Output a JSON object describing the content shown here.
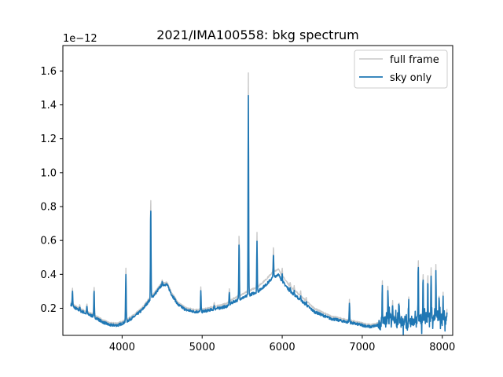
{
  "chart_data": {
    "type": "line",
    "title": "2021/IMA100558: bkg spectrum",
    "xlabel": "",
    "ylabel": "",
    "offset_label": "1e−12",
    "xlim": [
      3260,
      8130
    ],
    "ylim": [
      0.04,
      1.75
    ],
    "x_ticks": [
      4000,
      5000,
      6000,
      7000,
      8000
    ],
    "x_tick_labels": [
      "4000",
      "5000",
      "6000",
      "7000",
      "8000"
    ],
    "y_ticks": [
      0.2,
      0.4,
      0.6,
      0.8,
      1.0,
      1.2,
      1.4,
      1.6
    ],
    "y_tick_labels": [
      "0.2",
      "0.4",
      "0.6",
      "0.8",
      "1.0",
      "1.2",
      "1.4",
      "1.6"
    ],
    "grid": false,
    "legend_position": "top-right",
    "legend": [
      "full frame",
      "sky only"
    ],
    "colors": {
      "full_frame": "#c8c8c8",
      "sky_only": "#1f77b4"
    },
    "continuum_points": [
      [
        3360,
        0.22
      ],
      [
        3450,
        0.19
      ],
      [
        3550,
        0.17
      ],
      [
        3650,
        0.15
      ],
      [
        3750,
        0.12
      ],
      [
        3850,
        0.1
      ],
      [
        3950,
        0.1
      ],
      [
        4050,
        0.12
      ],
      [
        4150,
        0.15
      ],
      [
        4250,
        0.19
      ],
      [
        4330,
        0.24
      ],
      [
        4420,
        0.29
      ],
      [
        4500,
        0.34
      ],
      [
        4560,
        0.34
      ],
      [
        4620,
        0.28
      ],
      [
        4700,
        0.22
      ],
      [
        4800,
        0.19
      ],
      [
        4900,
        0.18
      ],
      [
        5000,
        0.18
      ],
      [
        5100,
        0.19
      ],
      [
        5200,
        0.2
      ],
      [
        5300,
        0.21
      ],
      [
        5400,
        0.24
      ],
      [
        5500,
        0.26
      ],
      [
        5600,
        0.28
      ],
      [
        5700,
        0.3
      ],
      [
        5800,
        0.34
      ],
      [
        5880,
        0.38
      ],
      [
        5950,
        0.4
      ],
      [
        6000,
        0.36
      ],
      [
        6100,
        0.3
      ],
      [
        6200,
        0.26
      ],
      [
        6300,
        0.22
      ],
      [
        6400,
        0.18
      ],
      [
        6500,
        0.16
      ],
      [
        6600,
        0.14
      ],
      [
        6700,
        0.13
      ],
      [
        6800,
        0.12
      ],
      [
        6900,
        0.11
      ],
      [
        7000,
        0.1
      ],
      [
        7100,
        0.09
      ],
      [
        7200,
        0.1
      ],
      [
        7300,
        0.13
      ],
      [
        7400,
        0.14
      ],
      [
        7500,
        0.12
      ],
      [
        7600,
        0.11
      ],
      [
        7700,
        0.13
      ],
      [
        7800,
        0.15
      ],
      [
        7900,
        0.14
      ],
      [
        8000,
        0.14
      ],
      [
        8060,
        0.13
      ]
    ],
    "sky_lines": [
      [
        3380,
        0.3
      ],
      [
        3470,
        0.21
      ],
      [
        3560,
        0.21
      ],
      [
        3650,
        0.3
      ],
      [
        4047,
        0.4
      ],
      [
        4358,
        0.8
      ],
      [
        4500,
        0.35
      ],
      [
        4670,
        0.22
      ],
      [
        4983,
        0.3
      ],
      [
        5150,
        0.22
      ],
      [
        5340,
        0.29
      ],
      [
        5461,
        0.59
      ],
      [
        5577,
        1.46
      ],
      [
        5685,
        0.59
      ],
      [
        5890,
        0.52
      ],
      [
        6000,
        0.4
      ],
      [
        6100,
        0.32
      ],
      [
        6150,
        0.3
      ],
      [
        6230,
        0.28
      ],
      [
        6300,
        0.24
      ],
      [
        6840,
        0.23
      ],
      [
        7250,
        0.34
      ],
      [
        7320,
        0.3
      ],
      [
        7380,
        0.24
      ],
      [
        7460,
        0.21
      ],
      [
        7580,
        0.24
      ],
      [
        7700,
        0.46
      ],
      [
        7760,
        0.38
      ],
      [
        7820,
        0.4
      ],
      [
        7860,
        0.42
      ],
      [
        7920,
        0.42
      ],
      [
        7960,
        0.24
      ],
      [
        8010,
        0.27
      ],
      [
        8060,
        0.2
      ]
    ]
  }
}
